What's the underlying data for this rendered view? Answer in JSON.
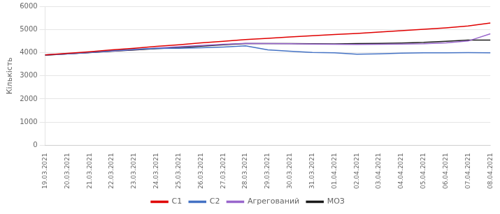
{
  "chart_data": {
    "type": "line",
    "categories": [
      "19.03.2021",
      "20.03.2021",
      "21.03.2021",
      "22.03.2021",
      "23.03.2021",
      "24.03.2021",
      "25.03.2021",
      "26.03.2021",
      "27.03.2021",
      "28.03.2021",
      "29.03.2021",
      "30.03.2021",
      "31.03.2021",
      "01.04.2021",
      "02.04.2021",
      "03.04.2021",
      "04.04.2021",
      "05.04.2021",
      "06.04.2021",
      "07.04.2021",
      "08.04.2021"
    ],
    "series": [
      {
        "name": "С1",
        "color": "#e00000",
        "values": [
          3900,
          3970,
          4040,
          4120,
          4190,
          4270,
          4340,
          4420,
          4490,
          4560,
          4620,
          4680,
          4730,
          4780,
          4830,
          4890,
          4950,
          5010,
          5070,
          5150,
          5280
        ]
      },
      {
        "name": "С2",
        "color": "#4472c4",
        "values": [
          3900,
          3950,
          4010,
          4080,
          4140,
          4180,
          4190,
          4210,
          4240,
          4290,
          4120,
          4060,
          4010,
          3990,
          3930,
          3950,
          3980,
          3990,
          3995,
          4000,
          3990
        ]
      },
      {
        "name": "Агрегований",
        "color": "#9966cc",
        "values": [
          3900,
          3950,
          4010,
          4070,
          4130,
          4195,
          4255,
          4310,
          4360,
          4400,
          4390,
          4380,
          4370,
          4360,
          4355,
          4360,
          4370,
          4380,
          4420,
          4500,
          4810
        ]
      },
      {
        "name": "МОЗ",
        "color": "#1a1a1a",
        "values": [
          3890,
          3945,
          4000,
          4060,
          4110,
          4170,
          4220,
          4280,
          4340,
          4390,
          4390,
          4390,
          4385,
          4375,
          4390,
          4400,
          4415,
          4440,
          4490,
          4540,
          4540
        ]
      }
    ],
    "y_label": "Кількість",
    "ylim": [
      0,
      6000
    ],
    "yticks": [
      0,
      1000,
      2000,
      3000,
      4000,
      5000,
      6000
    ],
    "grid": true,
    "legend": "bottom"
  }
}
